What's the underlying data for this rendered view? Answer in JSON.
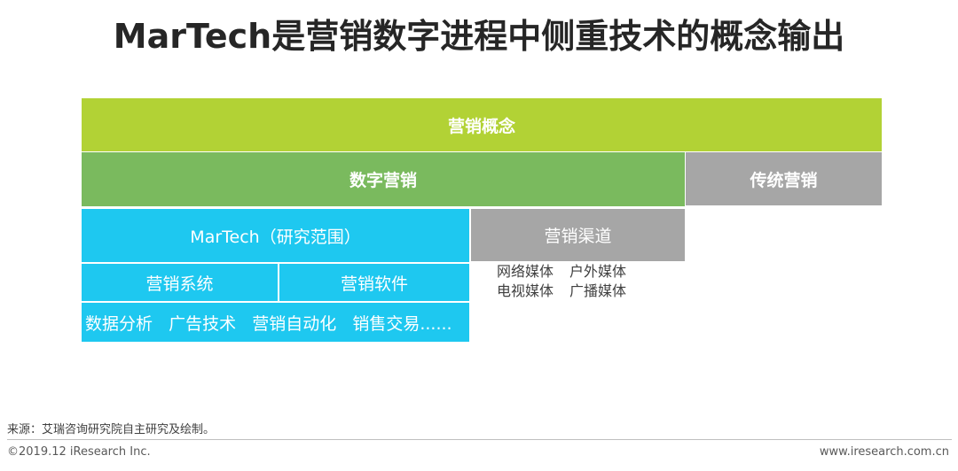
{
  "title": "MarTech是营销数字进程中侧重技术的概念输出",
  "diagram": {
    "marketing_concept": "营销概念",
    "digital_marketing": "数字营销",
    "traditional_marketing": "传统营销",
    "martech": "MarTech（研究范围）",
    "marketing_channels": "营销渠道",
    "marketing_system": "营销系统",
    "marketing_software": "营销软件",
    "martech_examples": "数据分析   广告技术   营销自动化   销售交易......",
    "channels": [
      [
        "网络媒体",
        "户外媒体"
      ],
      [
        "电视媒体",
        "广播媒体"
      ]
    ]
  },
  "footer": {
    "source": "来源：艾瑞咨询研究院自主研究及绘制。",
    "copyright": "©2019.12 iResearch Inc.",
    "website": "www.iresearch.com.cn"
  },
  "colors": {
    "concept": "#b2d235",
    "digital": "#7aba5e",
    "traditional": "#a6a6a6",
    "martech": "#1ec8f0"
  }
}
